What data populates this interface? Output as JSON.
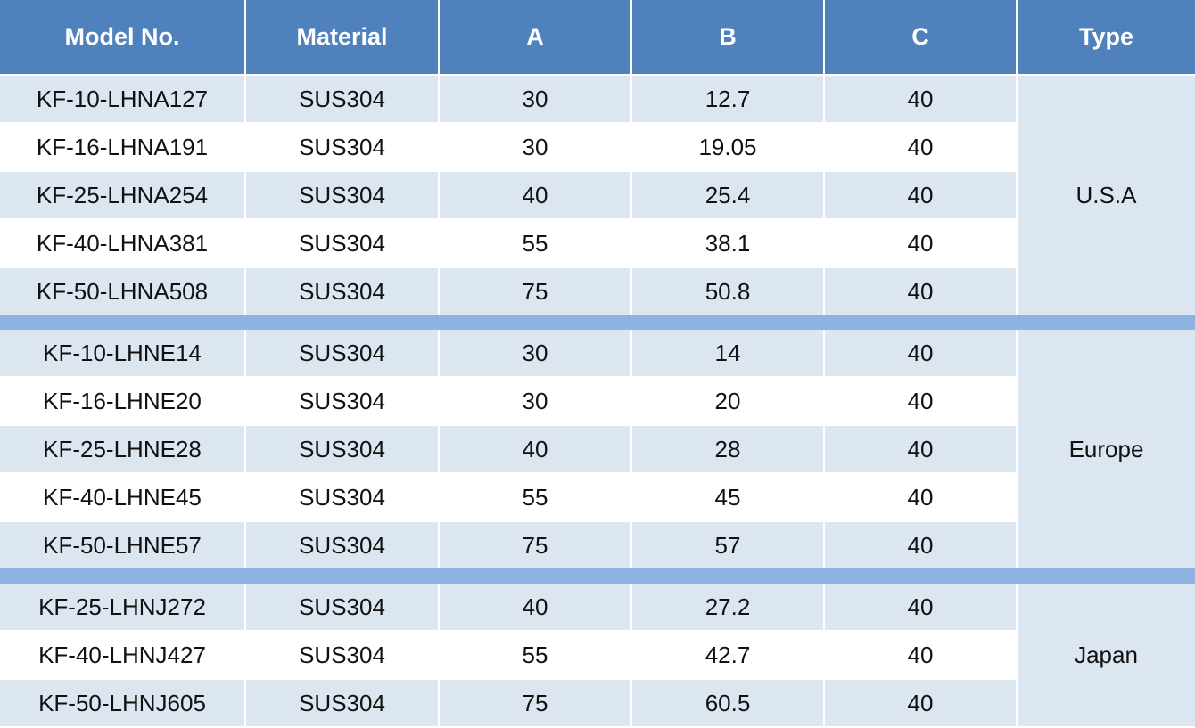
{
  "table": {
    "header": [
      "Model No.",
      "Material",
      "A",
      "B",
      "C",
      "Type"
    ],
    "groups": [
      {
        "type": "U.S.A",
        "rows": [
          [
            "KF-10-LHNA127",
            "SUS304",
            30,
            12.7,
            40
          ],
          [
            "KF-16-LHNA191",
            "SUS304",
            30,
            19.05,
            40
          ],
          [
            "KF-25-LHNA254",
            "SUS304",
            40,
            25.4,
            40
          ],
          [
            "KF-40-LHNA381",
            "SUS304",
            55,
            38.1,
            40
          ],
          [
            "KF-50-LHNA508",
            "SUS304",
            75,
            50.8,
            40
          ]
        ]
      },
      {
        "type": "Europe",
        "rows": [
          [
            "KF-10-LHNE14",
            "SUS304",
            30,
            14,
            40
          ],
          [
            "KF-16-LHNE20",
            "SUS304",
            30,
            20,
            40
          ],
          [
            "KF-25-LHNE28",
            "SUS304",
            40,
            28,
            40
          ],
          [
            "KF-40-LHNE45",
            "SUS304",
            55,
            45,
            40
          ],
          [
            "KF-50-LHNE57",
            "SUS304",
            75,
            57,
            40
          ]
        ]
      },
      {
        "type": "Japan",
        "rows": [
          [
            "KF-25-LHNJ272",
            "SUS304",
            40,
            27.2,
            40
          ],
          [
            "KF-40-LHNJ427",
            "SUS304",
            55,
            42.7,
            40
          ],
          [
            "KF-50-LHNJ605",
            "SUS304",
            75,
            60.5,
            40
          ]
        ]
      }
    ]
  }
}
